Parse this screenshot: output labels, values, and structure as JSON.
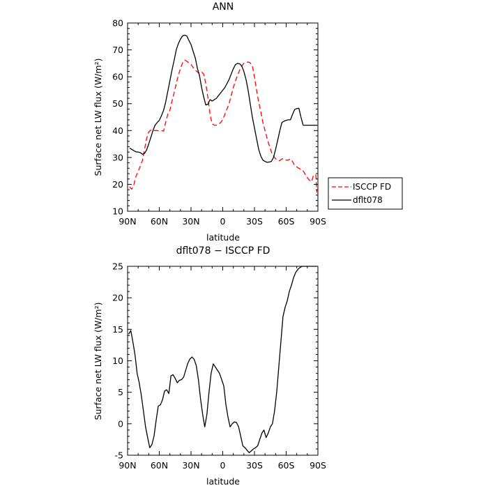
{
  "chart_data": [
    {
      "type": "line",
      "title": "ANN",
      "xlabel": "latitude",
      "ylabel": "Surface net LW flux (W/m²)",
      "xlim": [
        90,
        -90
      ],
      "ylim": [
        10,
        80
      ],
      "x_ticks": [
        90,
        60,
        30,
        0,
        -30,
        -60,
        -90
      ],
      "x_tick_labels": [
        "90N",
        "60N",
        "30N",
        "0",
        "30S",
        "60S",
        "90S"
      ],
      "y_ticks": [
        10,
        20,
        30,
        40,
        50,
        60,
        70,
        80
      ],
      "grid": false,
      "legend": "outside-right",
      "series": [
        {
          "name": "ISCCP FD",
          "color": "#ff0000",
          "dash": true,
          "x": [
            88,
            86,
            84,
            82,
            80,
            78,
            76,
            74,
            72,
            70,
            68,
            66,
            64,
            62,
            60,
            58,
            56,
            54,
            52,
            50,
            48,
            46,
            44,
            42,
            40,
            38,
            36,
            34,
            32,
            30,
            28,
            26,
            24,
            22,
            20,
            18,
            16,
            14,
            12,
            10,
            8,
            6,
            4,
            2,
            0,
            -2,
            -4,
            -6,
            -8,
            -10,
            -12,
            -14,
            -16,
            -18,
            -20,
            -22,
            -24,
            -26,
            -28,
            -30,
            -32,
            -34,
            -36,
            -38,
            -40,
            -42,
            -44,
            -46,
            -48,
            -50,
            -52,
            -54,
            -56,
            -58,
            -60,
            -62,
            -64,
            -66,
            -68,
            -70,
            -72,
            -74,
            -76,
            -78,
            -80,
            -82,
            -84,
            -86,
            -88,
            -89
          ],
          "y": [
            19,
            18.2,
            20,
            23,
            24.8,
            26.8,
            28.8,
            33,
            37,
            39.5,
            40.2,
            40,
            40,
            40,
            39.8,
            40,
            39.8,
            43,
            46,
            47.5,
            51,
            54,
            57.5,
            60.5,
            63,
            65.2,
            66.2,
            65.8,
            65.2,
            64.6,
            63.5,
            62.5,
            61.8,
            61.2,
            61.8,
            61,
            57.5,
            52,
            46,
            42.5,
            42,
            42,
            42.3,
            43,
            44,
            46,
            48,
            50,
            53,
            56,
            58.5,
            60.5,
            62.5,
            64,
            65,
            65.2,
            65.5,
            65.2,
            64,
            60,
            55,
            50.5,
            47,
            43,
            40,
            37,
            34.5,
            32,
            30.5,
            29.5,
            29,
            28.8,
            29.5,
            29.5,
            29,
            29,
            29.5,
            28.5,
            27,
            26.5,
            26,
            25.5,
            25,
            23.8,
            22.5,
            21.5,
            21,
            23.5,
            23.5,
            17
          ]
        },
        {
          "name": "dflt078",
          "color": "#000000",
          "dash": false,
          "x": [
            88,
            86,
            84,
            82,
            80,
            78,
            76,
            74,
            72,
            70,
            68,
            66,
            64,
            62,
            60,
            58,
            56,
            54,
            52,
            50,
            48,
            46,
            44,
            42,
            40,
            38,
            36,
            34,
            32,
            30,
            28,
            26,
            24,
            22,
            20,
            18,
            16,
            14,
            12,
            10,
            8,
            6,
            4,
            2,
            0,
            -2,
            -4,
            -6,
            -8,
            -10,
            -12,
            -14,
            -16,
            -18,
            -20,
            -22,
            -24,
            -26,
            -28,
            -30,
            -32,
            -34,
            -36,
            -38,
            -40,
            -42,
            -44,
            -46,
            -48,
            -50,
            -52,
            -54,
            -56,
            -58,
            -60,
            -62,
            -64,
            -66,
            -68,
            -70,
            -72,
            -74,
            -76,
            -78,
            -80,
            -82,
            -84,
            -86,
            -88,
            -89
          ],
          "y": [
            33.5,
            33,
            32.5,
            32.1,
            32,
            31.8,
            31.2,
            31.5,
            32.8,
            35,
            37.5,
            40,
            42,
            43,
            43.8,
            45.5,
            47.5,
            50.5,
            54.5,
            58.5,
            62.5,
            66,
            70,
            72.3,
            74,
            75.2,
            75.5,
            75.2,
            73.5,
            72,
            69.5,
            67,
            63.2,
            60.5,
            56,
            52.5,
            49.5,
            49.8,
            51.5,
            51,
            51.5,
            52,
            53,
            54,
            55,
            56,
            57.5,
            59,
            61,
            63,
            64.5,
            65,
            64.8,
            64,
            62,
            59,
            55,
            50,
            45,
            41,
            37,
            33,
            30.5,
            29,
            28.5,
            28.2,
            28.3,
            28.5,
            30,
            33,
            36.5,
            40,
            43,
            43.5,
            43.8,
            44,
            44,
            46,
            47.8,
            48.2,
            48.3,
            45,
            42,
            42,
            42,
            42,
            42,
            42,
            42,
            42
          ]
        }
      ]
    },
    {
      "type": "line",
      "title": "dflt078 − ISCCP FD",
      "xlabel": "latitude",
      "ylabel": "Surface net LW flux (W/m²)",
      "xlim": [
        90,
        -90
      ],
      "ylim": [
        -5,
        25
      ],
      "x_ticks": [
        90,
        60,
        30,
        0,
        -30,
        -60,
        -90
      ],
      "x_tick_labels": [
        "90N",
        "60N",
        "30N",
        "0",
        "30S",
        "60S",
        "90S"
      ],
      "y_ticks": [
        -5,
        0,
        5,
        10,
        15,
        20,
        25
      ],
      "grid": false,
      "series": [
        {
          "color": "#000000",
          "dash": false,
          "x": [
            89,
            87,
            85,
            83,
            81,
            79,
            77,
            75,
            73,
            71,
            69,
            67,
            65,
            63,
            61,
            59,
            57,
            55,
            53,
            51,
            49,
            47,
            45,
            43,
            41,
            39,
            37,
            35,
            33,
            31,
            29,
            27,
            25,
            23,
            21,
            19,
            17,
            15,
            13,
            11,
            9,
            7,
            5,
            3,
            1,
            -1,
            -3,
            -5,
            -7,
            -9,
            -11,
            -13,
            -15,
            -17,
            -19,
            -21,
            -23,
            -25,
            -27,
            -29,
            -31,
            -33,
            -35,
            -37,
            -39,
            -41,
            -43,
            -45,
            -47,
            -49,
            -51,
            -53,
            -55,
            -57,
            -59,
            -61,
            -63,
            -65,
            -67,
            -69,
            -71,
            -73,
            -75,
            -77,
            -79,
            -81,
            -83,
            -85,
            -87,
            -89
          ],
          "y": [
            14.2,
            14.8,
            13,
            11,
            8,
            6.5,
            4.5,
            2,
            -0.5,
            -2.2,
            -3.8,
            -3.3,
            -2,
            0.5,
            2.8,
            3,
            3.8,
            5.2,
            5.4,
            4.8,
            7.6,
            7.8,
            7.2,
            6.5,
            6.9,
            7,
            7.4,
            8.5,
            9.6,
            10.3,
            10.6,
            10.2,
            9.2,
            7,
            4,
            1.5,
            -0.5,
            1.5,
            5,
            8,
            9.5,
            9,
            8.5,
            8,
            7,
            6,
            3,
            1,
            -0.5,
            0,
            0.3,
            0.2,
            -0.5,
            -2,
            -3.5,
            -3.8,
            -4.2,
            -4.6,
            -4.3,
            -4,
            -3.8,
            -3.5,
            -2.5,
            -1.5,
            -1,
            -2.2,
            -1.5,
            -0.5,
            0,
            2,
            5,
            9,
            13,
            17,
            18.5,
            19.5,
            21,
            22,
            23.2,
            24,
            24.5,
            24.8,
            25,
            25,
            25,
            25,
            25,
            25,
            25,
            25
          ]
        }
      ]
    }
  ]
}
